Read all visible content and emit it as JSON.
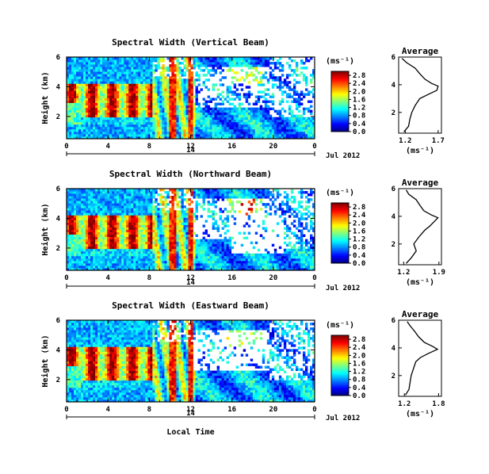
{
  "figure": {
    "x_label": "Local Time",
    "date_label": "Jul 2012",
    "day_label": "14",
    "ylabel": "Height (km)",
    "colorbar_unit": "(ms⁻¹)",
    "avg_xlabel": "(ms⁻¹)",
    "avg_title": "Average"
  },
  "chart_data": [
    {
      "type": "heatmap",
      "title": "Spectral Width (Vertical Beam)",
      "x_ticks": [
        "0",
        "4",
        "8",
        "12",
        "16",
        "20",
        "0"
      ],
      "y_ticks": [
        "2",
        "4",
        "6"
      ],
      "xlim": [
        0,
        24
      ],
      "ylim": [
        0.5,
        6
      ],
      "colorbar": {
        "ticks": [
          "0.0",
          "0.4",
          "0.8",
          "1.2",
          "1.6",
          "2.0",
          "2.4",
          "2.8"
        ],
        "range": [
          0,
          3.0
        ]
      },
      "average_profile": {
        "x_ticks": [
          "1.2",
          "1.7"
        ],
        "xlim": [
          1.1,
          1.75
        ],
        "y_ticks": [
          "2",
          "4",
          "6"
        ],
        "height": [
          0.6,
          1.0,
          1.5,
          2.0,
          2.5,
          3.0,
          3.3,
          3.6,
          3.9,
          4.1,
          4.4,
          4.8,
          5.2,
          5.6,
          5.9
        ],
        "value": [
          1.18,
          1.25,
          1.27,
          1.3,
          1.35,
          1.42,
          1.55,
          1.68,
          1.7,
          1.6,
          1.5,
          1.42,
          1.35,
          1.22,
          1.15
        ]
      }
    },
    {
      "type": "heatmap",
      "title": "Spectral Width (Northward Beam)",
      "x_ticks": [
        "0",
        "4",
        "8",
        "12",
        "16",
        "20",
        "0"
      ],
      "y_ticks": [
        "2",
        "4",
        "6"
      ],
      "xlim": [
        0,
        24
      ],
      "ylim": [
        0.5,
        6
      ],
      "colorbar": {
        "ticks": [
          "0.0",
          "0.4",
          "0.8",
          "1.2",
          "1.6",
          "2.0",
          "2.4",
          "2.8"
        ],
        "range": [
          0,
          3.0
        ]
      },
      "average_profile": {
        "x_ticks": [
          "1.2",
          "1.9"
        ],
        "xlim": [
          1.1,
          1.95
        ],
        "y_ticks": [
          "2",
          "4",
          "6"
        ],
        "height": [
          0.6,
          1.0,
          1.5,
          2.0,
          2.5,
          3.0,
          3.3,
          3.6,
          3.9,
          4.1,
          4.4,
          4.8,
          5.2,
          5.6,
          5.9
        ],
        "value": [
          1.25,
          1.35,
          1.45,
          1.4,
          1.5,
          1.62,
          1.72,
          1.8,
          1.88,
          1.75,
          1.6,
          1.52,
          1.45,
          1.3,
          1.25
        ]
      }
    },
    {
      "type": "heatmap",
      "title": "Spectral Width (Eastward Beam)",
      "x_ticks": [
        "0",
        "4",
        "8",
        "12",
        "16",
        "20",
        "0"
      ],
      "y_ticks": [
        "2",
        "4",
        "6"
      ],
      "xlim": [
        0,
        24
      ],
      "ylim": [
        0.5,
        6
      ],
      "colorbar": {
        "ticks": [
          "0.0",
          "0.4",
          "0.8",
          "1.2",
          "1.6",
          "2.0",
          "2.4",
          "2.8"
        ],
        "range": [
          0,
          3.0
        ]
      },
      "average_profile": {
        "x_ticks": [
          "1.2",
          "1.8"
        ],
        "xlim": [
          1.1,
          1.85
        ],
        "y_ticks": [
          "2",
          "4",
          "6"
        ],
        "height": [
          0.6,
          1.0,
          1.5,
          2.0,
          2.5,
          3.0,
          3.3,
          3.6,
          3.9,
          4.1,
          4.4,
          4.8,
          5.2,
          5.6,
          5.9
        ],
        "value": [
          1.22,
          1.28,
          1.3,
          1.32,
          1.36,
          1.4,
          1.48,
          1.62,
          1.78,
          1.7,
          1.55,
          1.45,
          1.38,
          1.3,
          1.25
        ]
      }
    }
  ]
}
